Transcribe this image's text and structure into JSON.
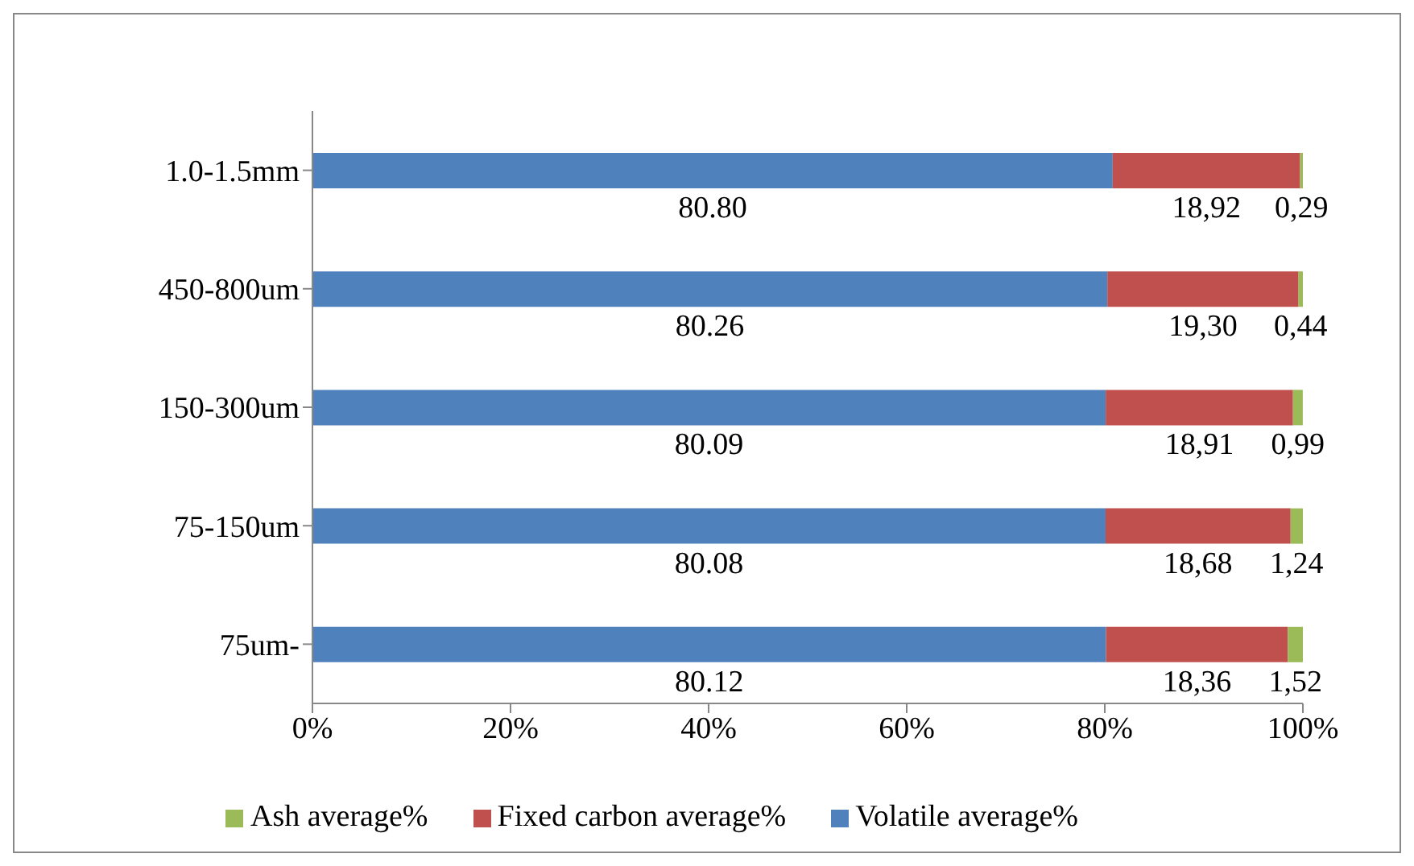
{
  "chart_data": {
    "type": "bar",
    "orientation": "horizontal",
    "stacked": true,
    "categories": [
      "1.0-1.5mm",
      "450-800um",
      "150-300um",
      "75-150um",
      "75um-"
    ],
    "series": [
      {
        "name": "Volatile average%",
        "color": "#4f81bd",
        "values": [
          80.8,
          80.26,
          80.09,
          80.08,
          80.12
        ],
        "value_labels": [
          "80.80",
          "80.26",
          "80.09",
          "80.08",
          "80.12"
        ]
      },
      {
        "name": "Fixed carbon average%",
        "color": "#c0504d",
        "values": [
          18.92,
          19.3,
          18.91,
          18.68,
          18.36
        ],
        "value_labels": [
          "18,92",
          "19,30",
          "18,91",
          "18,68",
          "18,36"
        ]
      },
      {
        "name": "Ash average%",
        "color": "#9bbb59",
        "values": [
          0.29,
          0.44,
          0.99,
          1.24,
          1.52
        ],
        "value_labels": [
          "0,29",
          "0,44",
          "0,99",
          "1,24",
          "1,52"
        ]
      }
    ],
    "xlim": [
      0,
      100
    ],
    "xticks": [
      {
        "value": 0,
        "label": "0%"
      },
      {
        "value": 20,
        "label": "20%"
      },
      {
        "value": 40,
        "label": "40%"
      },
      {
        "value": 60,
        "label": "60%"
      },
      {
        "value": 80,
        "label": "80%"
      },
      {
        "value": 100,
        "label": "100%"
      }
    ],
    "grid": false,
    "legend": "bottom"
  }
}
